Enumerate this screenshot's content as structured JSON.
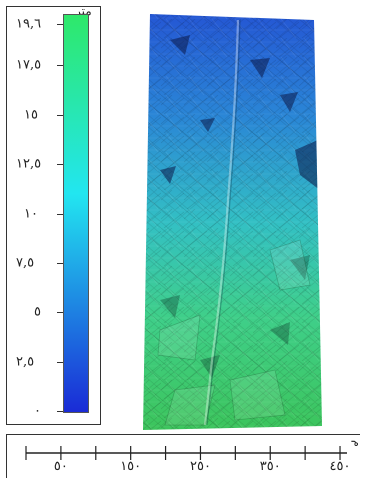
{
  "legend": {
    "unit": "متر",
    "ticks": [
      {
        "label": "١٩,٦",
        "value": 19.6
      },
      {
        "label": "١٧,٥",
        "value": 17.5
      },
      {
        "label": "١٥",
        "value": 15
      },
      {
        "label": "١٢,٥",
        "value": 12.5
      },
      {
        "label": "١٠",
        "value": 10
      },
      {
        "label": "٧,٥",
        "value": 7.5
      },
      {
        "label": "٥",
        "value": 5
      },
      {
        "label": "٢,٥",
        "value": 2.5
      },
      {
        "label": "٠",
        "value": 0
      }
    ],
    "min": 0,
    "max": 19.6,
    "colors": {
      "low": "#1a2bd6",
      "mid": "#22e6f0",
      "high": "#2ee86a"
    }
  },
  "map": {
    "colors": {
      "top": "#2455d4",
      "upper": "#2a86d6",
      "middle": "#33c0c4",
      "lower": "#3fcf8a",
      "bottom": "#3cc45a"
    }
  },
  "scale": {
    "unit": "م",
    "labels": [
      {
        "label": "٥٠",
        "value": 50
      },
      {
        "label": "١٥٠",
        "value": 150
      },
      {
        "label": "٢٥٠",
        "value": 250
      },
      {
        "label": "٣٥٠",
        "value": 350
      },
      {
        "label": "٤٥٠",
        "value": 450
      }
    ]
  }
}
